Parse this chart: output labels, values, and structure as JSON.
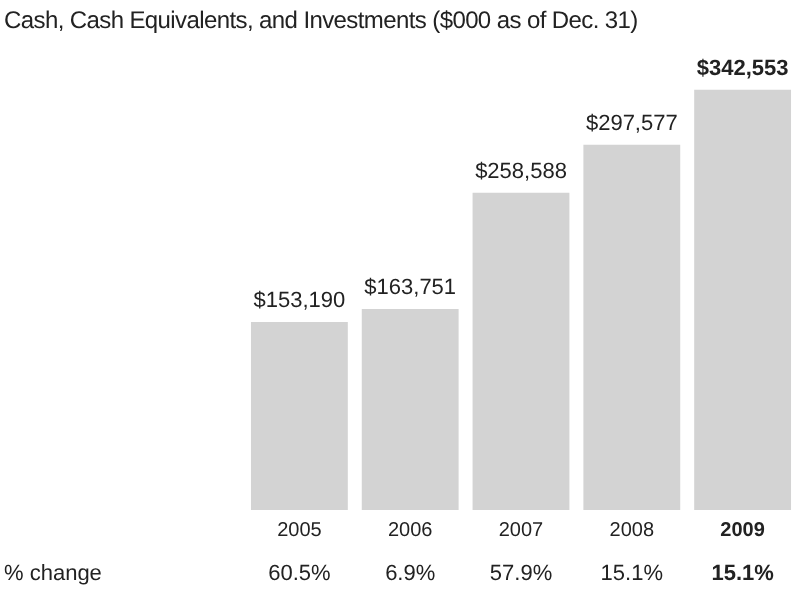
{
  "chart_data": {
    "type": "bar",
    "title": "Cash, Cash Equivalents, and Investments ($000 as of Dec. 31)",
    "categories": [
      "2005",
      "2006",
      "2007",
      "2008",
      "2009"
    ],
    "values": [
      153190,
      163751,
      258588,
      297577,
      342553
    ],
    "value_labels": [
      "$153,190",
      "$163,751",
      "$258,588",
      "$297,577",
      "$342,553"
    ],
    "color": "#d3d3d3",
    "annotations": [
      "% change",
      "60.5%",
      "6.9%",
      "57.9%",
      "15.1%",
      "15.1%"
    ],
    "grid": false,
    "legend": false
  }
}
